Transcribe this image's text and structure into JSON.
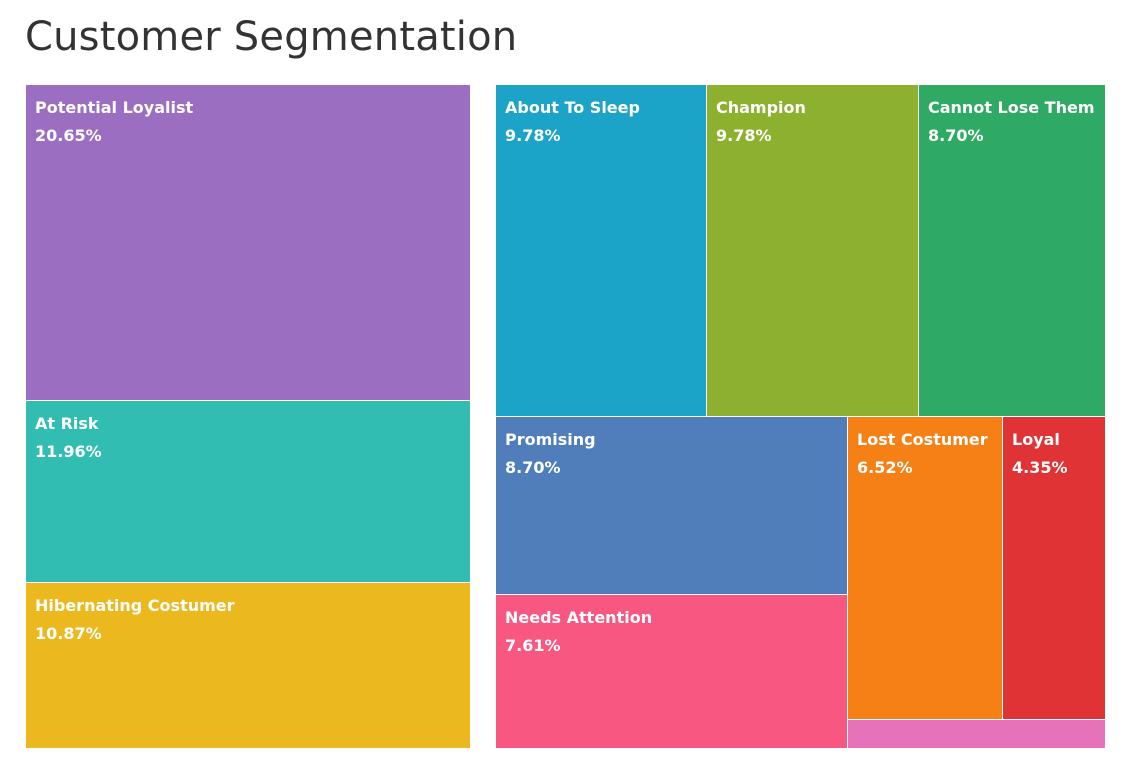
{
  "title": "Customer Segmentation",
  "chart_data": {
    "type": "treemap",
    "title": "Customer Segmentation",
    "segments": [
      {
        "label": "Potential Loyalist",
        "value": "20.65%",
        "percent": 20.65,
        "color": "#9b6ec1"
      },
      {
        "label": "At Risk",
        "value": "11.96%",
        "percent": 11.96,
        "color": "#31bdb1"
      },
      {
        "label": "Hibernating Costumer",
        "value": "10.87%",
        "percent": 10.87,
        "color": "#ebb81e"
      },
      {
        "label": "About To Sleep",
        "value": "9.78%",
        "percent": 9.78,
        "color": "#1ca3c8"
      },
      {
        "label": "Champion",
        "value": "9.78%",
        "percent": 9.78,
        "color": "#8db02e"
      },
      {
        "label": "Cannot Lose Them",
        "value": "8.70%",
        "percent": 8.7,
        "color": "#2faa64"
      },
      {
        "label": "Promising",
        "value": "8.70%",
        "percent": 8.7,
        "color": "#507eba"
      },
      {
        "label": "Needs Attention",
        "value": "7.61%",
        "percent": 7.61,
        "color": "#f75781"
      },
      {
        "label": "Lost Costumer",
        "value": "6.52%",
        "percent": 6.52,
        "color": "#f58116"
      },
      {
        "label": "Loyal",
        "value": "4.35%",
        "percent": 4.35,
        "color": "#e03335"
      },
      {
        "label": "",
        "value": "",
        "percent": 1.09,
        "color": "#e672b9"
      }
    ]
  }
}
